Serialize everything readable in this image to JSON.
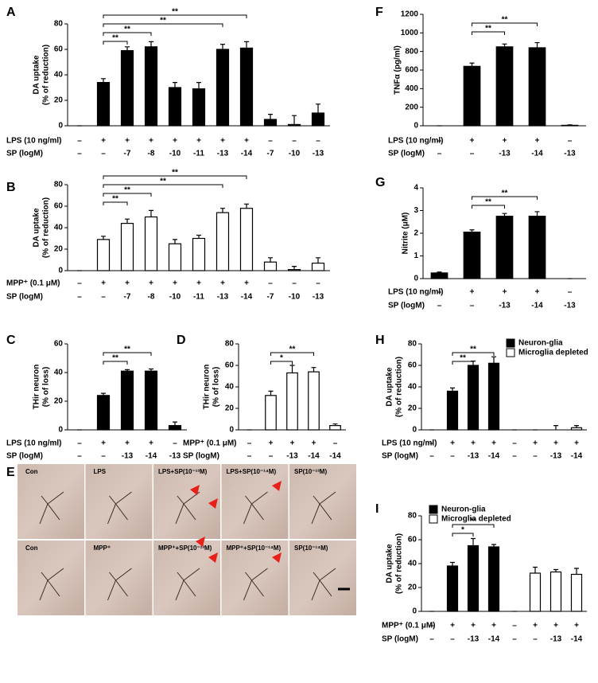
{
  "chart_data": [
    {
      "type": "bar",
      "panel": "A",
      "ylabel": [
        "DA uptake",
        "(% of reduction)"
      ],
      "ylim": [
        0,
        80
      ],
      "yticks": [
        0,
        20,
        40,
        60,
        80
      ],
      "color": "#000000",
      "values": [
        0,
        34,
        59,
        62,
        30,
        29,
        60,
        61,
        5,
        1,
        10
      ],
      "errors": [
        0,
        3,
        3,
        4,
        4,
        5,
        4,
        5,
        4,
        7,
        7
      ],
      "rows": [
        {
          "label": "LPS (10 ng/ml)",
          "entries": [
            "–",
            "+",
            "+",
            "+",
            "+",
            "+",
            "+",
            "+",
            "–",
            "–",
            "–"
          ]
        },
        {
          "label": "SP (logM)",
          "entries": [
            "–",
            "–",
            "-7",
            "-8",
            "-10",
            "-11",
            "-13",
            "-14",
            "-7",
            "-10",
            "-13"
          ]
        }
      ],
      "annotations": [
        "**",
        "**",
        "**",
        "**"
      ]
    },
    {
      "type": "bar",
      "panel": "B",
      "ylabel": [
        "DA uptake",
        "(% of reduction)"
      ],
      "ylim": [
        0,
        80
      ],
      "yticks": [
        0,
        20,
        40,
        60,
        80
      ],
      "color": "#ffffff",
      "values": [
        0,
        29,
        44,
        50,
        25,
        30,
        54,
        58,
        8,
        1,
        7
      ],
      "errors": [
        0,
        3,
        4,
        6,
        4,
        3,
        4,
        4,
        4,
        3,
        5
      ],
      "rows": [
        {
          "label": "MPP⁺ (0.1 μM)",
          "entries": [
            "–",
            "+",
            "+",
            "+",
            "+",
            "+",
            "+",
            "+",
            "–",
            "–",
            "–"
          ]
        },
        {
          "label": "SP (logM)",
          "entries": [
            "–",
            "–",
            "-7",
            "-8",
            "-10",
            "-11",
            "-13",
            "-14",
            "-7",
            "-10",
            "-13"
          ]
        }
      ],
      "annotations": [
        "**",
        "**",
        "**",
        "**"
      ]
    },
    {
      "type": "bar",
      "panel": "C",
      "ylabel": [
        "THir neuron",
        "(% of loss)"
      ],
      "ylim": [
        0,
        60
      ],
      "yticks": [
        0,
        20,
        40,
        60
      ],
      "color": "#000000",
      "values": [
        0,
        24,
        41,
        41,
        3
      ],
      "errors": [
        0,
        1.5,
        1,
        1.5,
        2.5
      ],
      "rows": [
        {
          "label": "LPS (10 ng/ml)",
          "entries": [
            "–",
            "+",
            "+",
            "+",
            "–"
          ]
        },
        {
          "label": "SP (logM)",
          "entries": [
            "–",
            "–",
            "-13",
            "-14",
            "-13"
          ]
        }
      ],
      "annotations": [
        "**",
        "**"
      ]
    },
    {
      "type": "bar",
      "panel": "D",
      "ylabel": [
        "THir neuron",
        "(% of loss)"
      ],
      "ylim": [
        0,
        80
      ],
      "yticks": [
        0,
        20,
        40,
        60,
        80
      ],
      "color": "#ffffff",
      "values": [
        0,
        32,
        53,
        54,
        4
      ],
      "errors": [
        0,
        4,
        7,
        4,
        1.5
      ],
      "rows": [
        {
          "label": "MPP⁺ (0.1 μM)",
          "entries": [
            "–",
            "+",
            "+",
            "+",
            "–"
          ]
        },
        {
          "label": "SP (logM)",
          "entries": [
            "–",
            "–",
            "-13",
            "-14",
            "-14"
          ]
        }
      ],
      "annotations": [
        "*",
        "**"
      ]
    },
    {
      "type": "bar",
      "panel": "F",
      "ylabel": [
        "TNFα (pg/ml)"
      ],
      "ylim": [
        0,
        1200
      ],
      "yticks": [
        0,
        200,
        400,
        600,
        800,
        1000,
        1200
      ],
      "color": "#000000",
      "values": [
        0,
        640,
        850,
        840,
        5
      ],
      "errors": [
        0,
        35,
        30,
        55,
        5
      ],
      "rows": [
        {
          "label": "LPS (10 ng/ml)",
          "entries": [
            "–",
            "+",
            "+",
            "+",
            "–"
          ]
        },
        {
          "label": "SP (logM)",
          "entries": [
            "–",
            "–",
            "-13",
            "-14",
            "-13"
          ]
        }
      ],
      "annotations": [
        "**",
        "**"
      ]
    },
    {
      "type": "bar",
      "panel": "G",
      "ylabel": [
        "Nitrite (μM)"
      ],
      "ylim": [
        0,
        4
      ],
      "yticks": [
        0,
        1,
        2,
        3,
        4
      ],
      "color": "#000000",
      "values": [
        0.25,
        2.05,
        2.75,
        2.75,
        0
      ],
      "errors": [
        0.04,
        0.1,
        0.12,
        0.2,
        0
      ],
      "rows": [
        {
          "label": "LPS (10 ng/ml)",
          "entries": [
            "–",
            "+",
            "+",
            "+",
            "–"
          ]
        },
        {
          "label": "SP (logM)",
          "entries": [
            "–",
            "–",
            "-13",
            "-14",
            "-13"
          ]
        }
      ],
      "annotations": [
        "**",
        "**"
      ]
    },
    {
      "type": "bar",
      "panel": "H",
      "ylabel": [
        "DA uptake",
        "(% of reduction)"
      ],
      "ylim": [
        0,
        80
      ],
      "yticks": [
        0,
        20,
        40,
        60,
        80
      ],
      "series": [
        {
          "name": "Neuron-glia",
          "color": "#000000",
          "values": [
            0,
            36,
            60,
            62,
            null,
            null,
            null,
            null
          ],
          "errors": [
            0,
            3,
            4,
            6,
            null,
            null,
            null,
            null
          ]
        },
        {
          "name": "Microglia depleted",
          "color": "#ffffff",
          "values": [
            null,
            null,
            null,
            null,
            0,
            0,
            0,
            2
          ],
          "errors": [
            null,
            null,
            null,
            null,
            0,
            0,
            4,
            2
          ]
        }
      ],
      "rows": [
        {
          "label": "LPS (10 ng/ml)",
          "entries": [
            "–",
            "+",
            "+",
            "+",
            "–",
            "+",
            "+",
            "+"
          ]
        },
        {
          "label": "SP (logM)",
          "entries": [
            "–",
            "–",
            "-13",
            "-14",
            "–",
            "–",
            "-13",
            "-14"
          ]
        }
      ],
      "annotations": [
        "**",
        "**"
      ]
    },
    {
      "type": "bar",
      "panel": "I",
      "ylabel": [
        "DA uptake",
        "(% of reduction)"
      ],
      "ylim": [
        0,
        80
      ],
      "yticks": [
        0,
        20,
        40,
        60,
        80
      ],
      "series": [
        {
          "name": "Neuron-glia",
          "color": "#000000",
          "values": [
            0,
            38,
            55,
            54,
            null,
            null,
            null,
            null
          ],
          "errors": [
            0,
            3,
            6,
            2,
            null,
            null,
            null,
            null
          ]
        },
        {
          "name": "Microglia depleted",
          "color": "#ffffff",
          "values": [
            null,
            null,
            null,
            null,
            0,
            32,
            33,
            31
          ],
          "errors": [
            null,
            null,
            null,
            null,
            0,
            5,
            2,
            5
          ]
        }
      ],
      "rows": [
        {
          "label": "MPP⁺ (0.1 μM)",
          "entries": [
            "–",
            "+",
            "+",
            "+",
            "–",
            "+",
            "+",
            "+"
          ]
        },
        {
          "label": "SP (logM)",
          "entries": [
            "–",
            "–",
            "-13",
            "-14",
            "–",
            "–",
            "-13",
            "-14"
          ]
        }
      ],
      "annotations": [
        "*",
        "**"
      ]
    }
  ],
  "figure_e": {
    "letter": "E",
    "labels": [
      [
        "Con",
        "LPS",
        "LPS+SP(10⁻¹³M)",
        "LPS+SP(10⁻¹⁴M)",
        "SP(10⁻¹³M)"
      ],
      [
        "Con",
        "MPP⁺",
        "MPP⁺+SP(10⁻¹³M)",
        "MPP⁺+SP(10⁻¹⁴M)",
        "SP(10⁻¹⁴M)"
      ]
    ]
  }
}
